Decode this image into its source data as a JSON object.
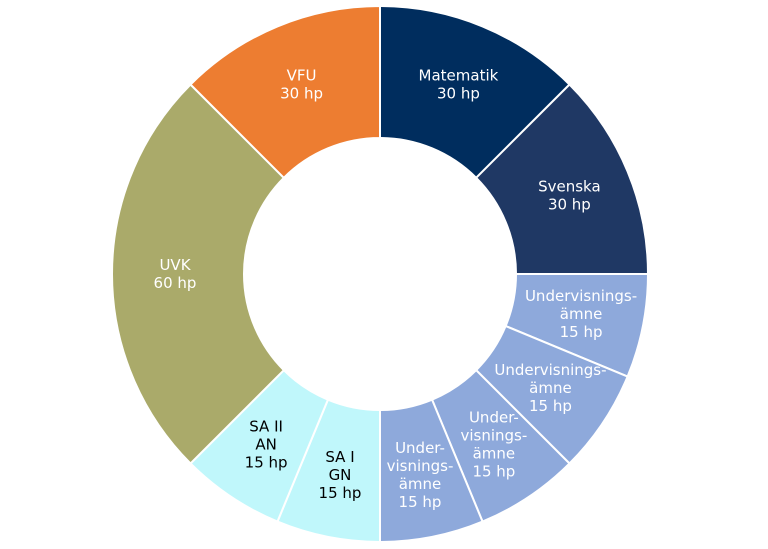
{
  "chart_data": {
    "type": "pie",
    "donut": true,
    "unit": "hp",
    "slices": [
      {
        "lines": [
          "Matematik",
          "30 hp"
        ],
        "value": 30,
        "color": "#002D5E",
        "text_color": "#ffffff"
      },
      {
        "lines": [
          "Svenska",
          "30 hp"
        ],
        "value": 30,
        "color": "#1F3864",
        "text_color": "#ffffff"
      },
      {
        "lines": [
          "Undervisnings-",
          "ämne",
          "15 hp"
        ],
        "value": 15,
        "color": "#8EA9DB",
        "text_color": "#ffffff"
      },
      {
        "lines": [
          "Undervisnings-",
          "ämne",
          "15 hp"
        ],
        "value": 15,
        "color": "#8EA9DB",
        "text_color": "#ffffff"
      },
      {
        "lines": [
          "Under-",
          "visnings-",
          "ämne",
          "15 hp"
        ],
        "value": 15,
        "color": "#8EA9DB",
        "text_color": "#ffffff"
      },
      {
        "lines": [
          "Under-",
          "visnings-",
          "ämne",
          "15 hp"
        ],
        "value": 15,
        "color": "#8EA9DB",
        "text_color": "#ffffff"
      },
      {
        "lines": [
          "SA I",
          "GN",
          "15 hp"
        ],
        "value": 15,
        "color": "#C0F7FB",
        "text_color": "#000000"
      },
      {
        "lines": [
          "SA II",
          "AN",
          "15 hp"
        ],
        "value": 15,
        "color": "#C0F7FB",
        "text_color": "#000000"
      },
      {
        "lines": [
          "UVK",
          "60 hp"
        ],
        "value": 60,
        "color": "#AAAA6A",
        "text_color": "#ffffff"
      },
      {
        "lines": [
          "VFU",
          "30 hp"
        ],
        "value": 30,
        "color": "#ED7D31",
        "text_color": "#ffffff"
      }
    ]
  }
}
